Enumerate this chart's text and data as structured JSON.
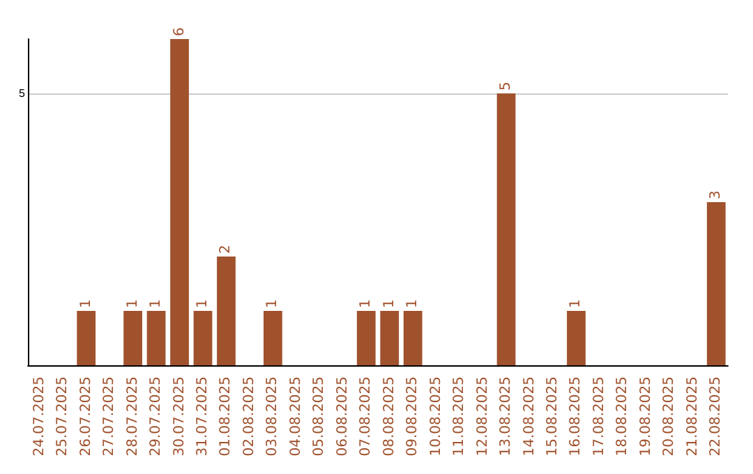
{
  "chart_data": {
    "type": "bar",
    "categories": [
      "24.07.2025",
      "25.07.2025",
      "26.07.2025",
      "27.07.2025",
      "28.07.2025",
      "29.07.2025",
      "30.07.2025",
      "31.07.2025",
      "01.08.2025",
      "02.08.2025",
      "03.08.2025",
      "04.08.2025",
      "05.08.2025",
      "06.08.2025",
      "07.08.2025",
      "08.08.2025",
      "09.08.2025",
      "10.08.2025",
      "11.08.2025",
      "12.08.2025",
      "13.08.2025",
      "14.08.2025",
      "15.08.2025",
      "16.08.2025",
      "17.08.2025",
      "18.08.2025",
      "19.08.2025",
      "20.08.2025",
      "21.08.2025",
      "22.08.2025"
    ],
    "values": [
      0,
      0,
      1,
      0,
      1,
      1,
      6,
      1,
      2,
      0,
      1,
      0,
      0,
      0,
      1,
      1,
      1,
      0,
      0,
      0,
      5,
      0,
      0,
      1,
      0,
      0,
      0,
      0,
      0,
      3
    ],
    "value_labels": [
      null,
      null,
      "1",
      null,
      "1",
      "1",
      "6",
      "1",
      "2",
      null,
      "1",
      null,
      null,
      null,
      "1",
      "1",
      "1",
      null,
      null,
      null,
      "5",
      null,
      null,
      "1",
      null,
      null,
      null,
      null,
      null,
      "3"
    ],
    "color": "#a0522d",
    "ylim": [
      0,
      6
    ],
    "yticks": [
      5
    ],
    "grid": "y"
  }
}
